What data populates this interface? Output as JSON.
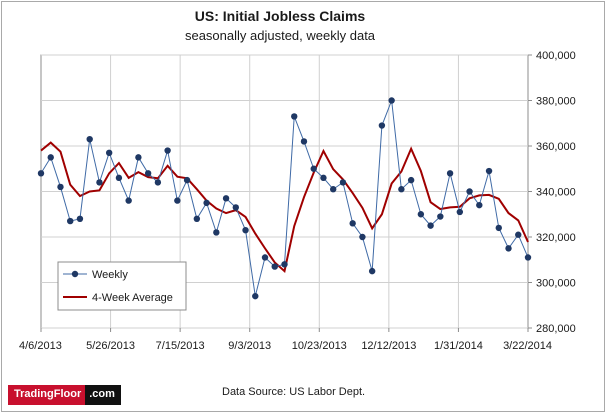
{
  "chart_data": {
    "type": "line",
    "title": "US: Initial Jobless Claims",
    "subtitle": "seasonally  adjusted,  weekly data",
    "ylim": [
      280000,
      400000
    ],
    "y_ticks": [
      "280,000",
      "300,000",
      "320,000",
      "340,000",
      "360,000",
      "380,000",
      "400,000"
    ],
    "x_tick_labels": [
      "4/6/2013",
      "5/26/2013",
      "7/15/2013",
      "9/3/2013",
      "10/23/2013",
      "12/12/2013",
      "1/31/2014",
      "3/22/2014"
    ],
    "grid": true,
    "legend_position": "lower-left",
    "series": [
      {
        "name": "Weekly",
        "color": "#1f3864",
        "marker": "circle",
        "values": [
          348000,
          355000,
          342000,
          327000,
          328000,
          363000,
          344000,
          357000,
          346000,
          336000,
          355000,
          348000,
          344000,
          358000,
          336000,
          345000,
          328000,
          335000,
          322000,
          337000,
          333000,
          323000,
          294000,
          311000,
          307000,
          308000,
          373000,
          362000,
          350000,
          346000,
          341000,
          344000,
          326000,
          320000,
          305000,
          369000,
          380000,
          341000,
          345000,
          330000,
          325000,
          329000,
          348000,
          331000,
          340000,
          334000,
          349000,
          324000,
          315000,
          321000,
          311000
        ]
      },
      {
        "name": "4-Week Average",
        "color": "#a00000",
        "values": [
          358000,
          361500,
          357500,
          343000,
          338000,
          340000,
          340500,
          348000,
          352500,
          346000,
          348500,
          346300,
          345800,
          351300,
          346500,
          345800,
          341000,
          336000,
          332500,
          330500,
          331800,
          328800,
          321500,
          315000,
          308800,
          305000,
          324800,
          337500,
          348300,
          357800,
          349800,
          345300,
          339300,
          332800,
          323800,
          330000,
          343500,
          348800,
          358800,
          349000,
          335300,
          332300,
          333000,
          333300,
          337000,
          338300,
          338500,
          336800,
          330500,
          327300,
          317800
        ]
      }
    ]
  },
  "footer": {
    "source": "Data Source: US Labor Dept.",
    "logo_part1": "TradingFloor",
    "logo_part2": ".com"
  }
}
